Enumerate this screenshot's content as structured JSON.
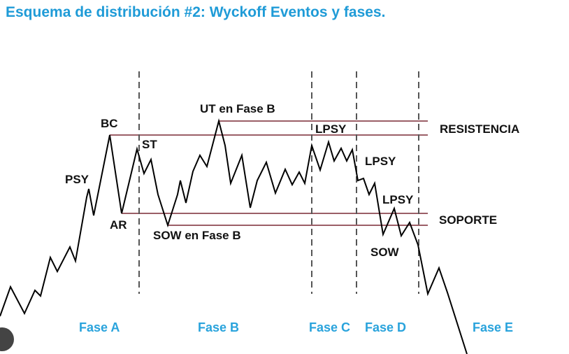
{
  "title": "Esquema de distribución #2: Wyckoff Eventos y fases.",
  "labels": {
    "psy": "PSY",
    "bc": "BC",
    "st": "ST",
    "ar": "AR",
    "ut": "UT en Fase B",
    "sow_b": "SOW en Fase B",
    "lpsy1": "LPSY",
    "lpsy2": "LPSY",
    "lpsy3": "LPSY",
    "sow": "SOW",
    "resistencia": "RESISTENCIA",
    "soporte": "SOPORTE"
  },
  "phases": [
    "Fase A",
    "Fase B",
    "Fase C",
    "Fase D",
    "Fase E"
  ],
  "colors": {
    "title": "#1f9bd7",
    "phase": "#29a3dc",
    "range_line": "#7a2a35",
    "price": "#000000"
  }
}
